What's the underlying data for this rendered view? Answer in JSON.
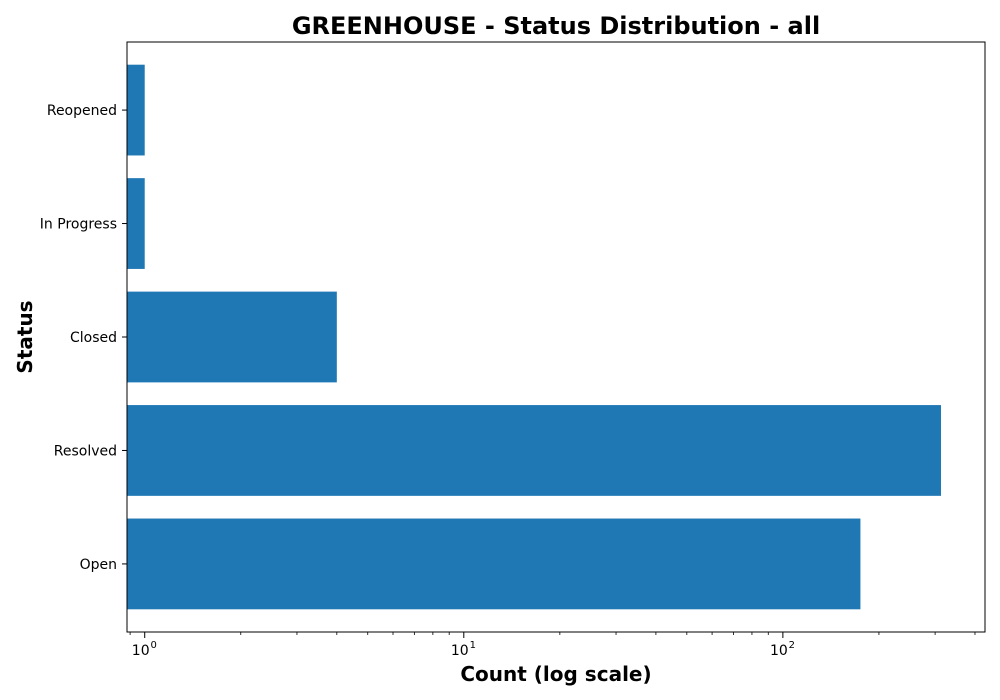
{
  "chart_data": {
    "type": "bar",
    "orientation": "horizontal",
    "title": "GREENHOUSE - Status Distribution - all",
    "xlabel": "Count (log scale)",
    "ylabel": "Status",
    "x_scale": "log",
    "xlim": [
      0.88,
      430
    ],
    "categories": [
      "Open",
      "Resolved",
      "Closed",
      "In Progress",
      "Reopened"
    ],
    "values": [
      175,
      313,
      4,
      1,
      1
    ],
    "x_ticks": [
      {
        "base": "10",
        "exp": "0",
        "value": 1
      },
      {
        "base": "10",
        "exp": "1",
        "value": 10
      },
      {
        "base": "10",
        "exp": "2",
        "value": 100
      }
    ],
    "bar_color": "#1f77b4",
    "grid": false,
    "legend": "none"
  }
}
